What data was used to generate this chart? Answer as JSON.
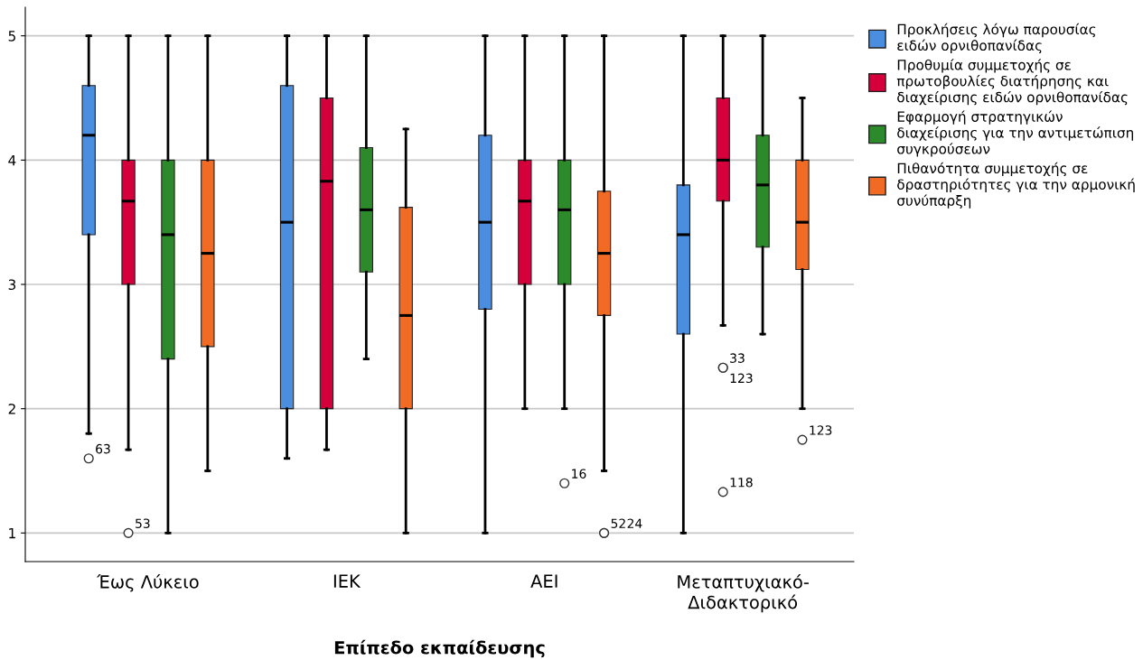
{
  "chart_data": {
    "type": "box",
    "xlabel": "Επίπεδο εκπαίδευσης",
    "categories": [
      "Έως Λύκειο",
      "ΙΕΚ",
      "ΑΕΙ",
      "Μεταπτυχιακό-\nΔιδακτορικό"
    ],
    "ylim": [
      0.77,
      5.23
    ],
    "yticks": [
      1,
      2,
      3,
      4,
      5
    ],
    "grid": "y",
    "legend": "top right",
    "series": [
      {
        "name": "Προκλήσεις λόγω παρουσίας\nειδών ορνιθοπανίδας",
        "color": "#4b8ee0",
        "boxes": [
          {
            "low": 1.8,
            "q1": 3.4,
            "median": 4.2,
            "q3": 4.6,
            "high": 5,
            "outliers": [
              1.6
            ]
          },
          {
            "low": 1.6,
            "q1": 2.0,
            "median": 3.5,
            "q3": 4.6,
            "high": 5
          },
          {
            "low": 1.0,
            "q1": 2.8,
            "median": 3.5,
            "q3": 4.2,
            "high": 5
          },
          {
            "low": 1.0,
            "q1": 2.6,
            "median": 3.4,
            "q3": 3.8,
            "high": 5
          }
        ]
      },
      {
        "name": "Προθυμία συμμετοχής σε\nπρωτοβουλίες διατήρησης και\nδιαχείρισης ειδών ορνιθοπανίδας",
        "color": "#d5003b",
        "boxes": [
          {
            "low": 1.67,
            "q1": 3.0,
            "median": 3.67,
            "q3": 4.0,
            "high": 5,
            "outliers": [
              1.0
            ]
          },
          {
            "low": 1.67,
            "q1": 2.0,
            "median": 3.83,
            "q3": 4.5,
            "high": 5
          },
          {
            "low": 2.0,
            "q1": 3.0,
            "median": 3.67,
            "q3": 4.0,
            "high": 5
          },
          {
            "low": 2.67,
            "q1": 3.67,
            "median": 4.0,
            "q3": 4.5,
            "high": 5,
            "outliers": [
              2.33,
              2.33,
              1.33
            ]
          }
        ]
      },
      {
        "name": "Εφαρμογή στρατηγικών\nδιαχείρισης για την αντιμετώπιση\nσυγκρούσεων",
        "color": "#2d8a2a",
        "boxes": [
          {
            "low": 1.0,
            "q1": 2.4,
            "median": 3.4,
            "q3": 4.0,
            "high": 5
          },
          {
            "low": 2.4,
            "q1": 3.1,
            "median": 3.6,
            "q3": 4.1,
            "high": 5
          },
          {
            "low": 2.0,
            "q1": 3.0,
            "median": 3.6,
            "q3": 4.0,
            "high": 5,
            "outliers": [
              1.4
            ]
          },
          {
            "low": 2.6,
            "q1": 3.3,
            "median": 3.8,
            "q3": 4.2,
            "high": 5
          }
        ]
      },
      {
        "name": "Πιθανότητα συμμετοχής σε\nδραστηριότητες για την αρμονική\nσυνύπαρξη",
        "color": "#f26b24",
        "boxes": [
          {
            "low": 1.5,
            "q1": 2.5,
            "median": 3.25,
            "q3": 4.0,
            "high": 5
          },
          {
            "low": 1.0,
            "q1": 2.0,
            "median": 2.75,
            "q3": 3.62,
            "high": 4.25
          },
          {
            "low": 1.5,
            "q1": 2.75,
            "median": 3.25,
            "q3": 3.75,
            "high": 5,
            "outliers": [
              1.0,
              1.0
            ]
          },
          {
            "low": 2.0,
            "q1": 3.12,
            "median": 3.5,
            "q3": 4.0,
            "high": 4.5,
            "outliers": [
              1.75
            ]
          }
        ]
      }
    ],
    "annotations": [
      "63",
      "53",
      "33",
      "123",
      "118",
      "16",
      "52",
      "24",
      "123"
    ]
  }
}
